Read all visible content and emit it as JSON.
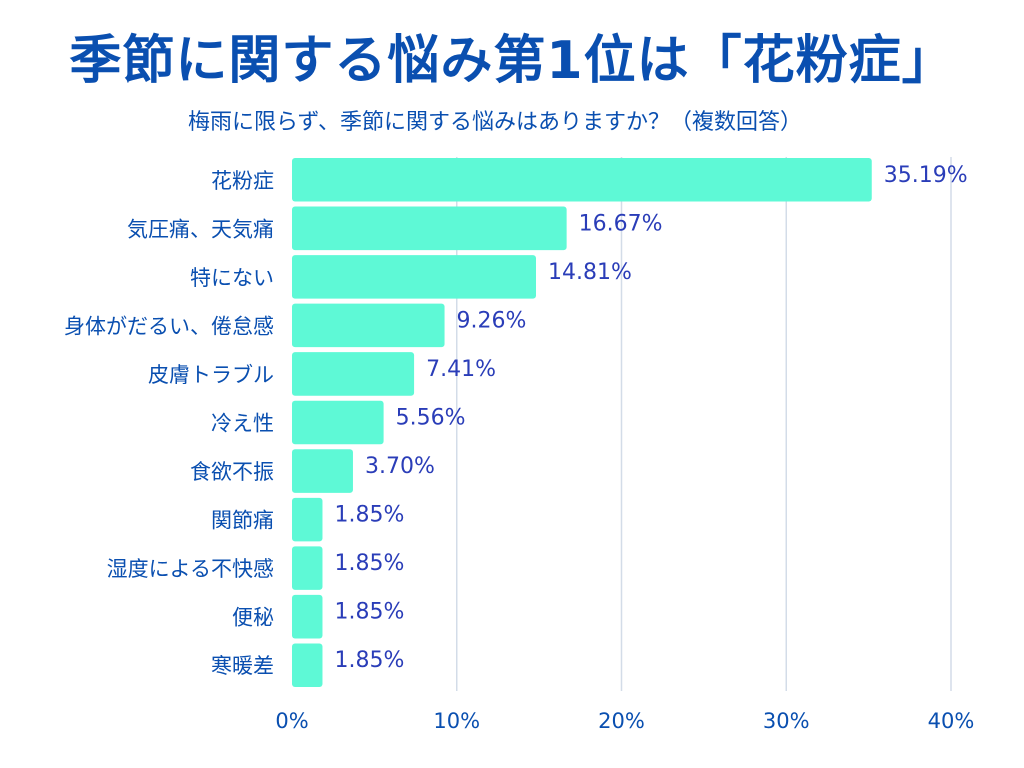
{
  "title": "季節に関する悩み第1位は「花粉症」",
  "subtitle": "梅雨に限らず、季節に関する悩みはありますか？（複数回答）",
  "colors": {
    "bar": "#5ef9d6",
    "title": "#0a4fb0",
    "value_label": "#2a3db8",
    "grid": "#d3dce8"
  },
  "chart_data": {
    "type": "bar",
    "orientation": "horizontal",
    "title": "季節に関する悩み第1位は「花粉症」",
    "subtitle": "梅雨に限らず、季節に関する悩みはありますか？（複数回答）",
    "categories": [
      "花粉症",
      "気圧痛、天気痛",
      "特にない",
      "身体がだるい、倦怠感",
      "皮膚トラブル",
      "冷え性",
      "食欲不振",
      "関節痛",
      "湿度による不快感",
      "便秘",
      "寒暖差"
    ],
    "values": [
      35.19,
      16.67,
      14.81,
      9.26,
      7.41,
      5.56,
      3.7,
      1.85,
      1.85,
      1.85,
      1.85
    ],
    "value_labels": [
      "35.19%",
      "16.67%",
      "14.81%",
      "9.26%",
      "7.41%",
      "5.56%",
      "3.70%",
      "1.85%",
      "1.85%",
      "1.85%",
      "1.85%"
    ],
    "xlim": [
      0,
      40
    ],
    "xticks": [
      0,
      10,
      20,
      30,
      40
    ],
    "xtick_labels": [
      "0%",
      "10%",
      "20%",
      "30%",
      "40%"
    ],
    "xlabel": "",
    "ylabel": "",
    "grid": true,
    "legend": "none"
  }
}
